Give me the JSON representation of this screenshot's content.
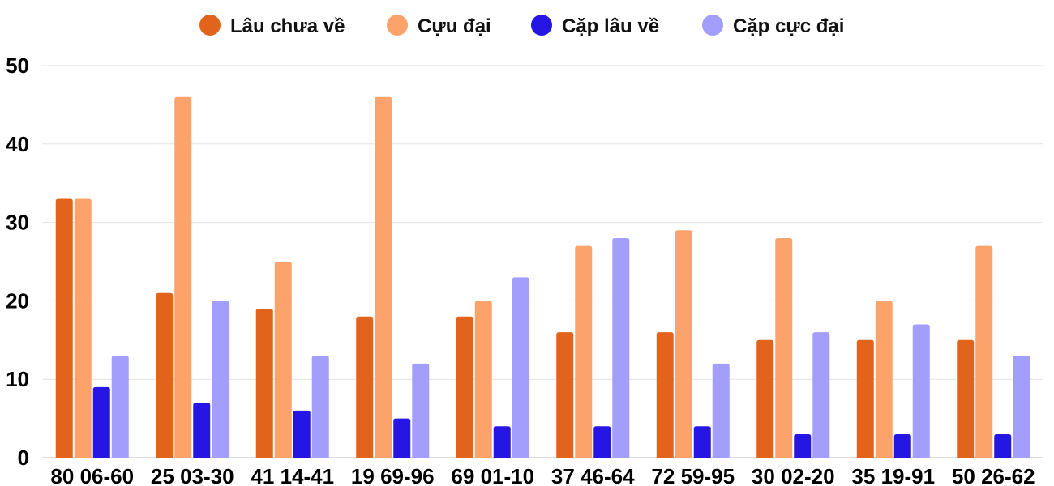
{
  "chart_data": {
    "type": "bar",
    "categories": [
      "80 06-60",
      "25 03-30",
      "41 14-41",
      "19 69-96",
      "69 01-10",
      "37 46-64",
      "72 59-95",
      "30 02-20",
      "35 19-91",
      "50 26-62"
    ],
    "series": [
      {
        "name": "Lâu chưa về",
        "color": "#e2641c",
        "values": [
          33,
          21,
          19,
          18,
          18,
          16,
          16,
          15,
          15,
          15
        ]
      },
      {
        "name": "Cựu đại",
        "color": "#fca36b",
        "values": [
          33,
          46,
          25,
          46,
          20,
          27,
          29,
          28,
          20,
          27
        ]
      },
      {
        "name": "Cặp lâu về",
        "color": "#2516e3",
        "values": [
          9,
          7,
          6,
          5,
          4,
          4,
          4,
          3,
          3,
          3
        ]
      },
      {
        "name": "Cặp cực đại",
        "color": "#a39dfb",
        "values": [
          13,
          20,
          13,
          12,
          23,
          28,
          12,
          16,
          17,
          13
        ]
      }
    ],
    "ylim": [
      0,
      50
    ],
    "yticks": [
      0,
      10,
      20,
      30,
      40,
      50
    ],
    "grid": true,
    "legend_position": "top-center"
  }
}
